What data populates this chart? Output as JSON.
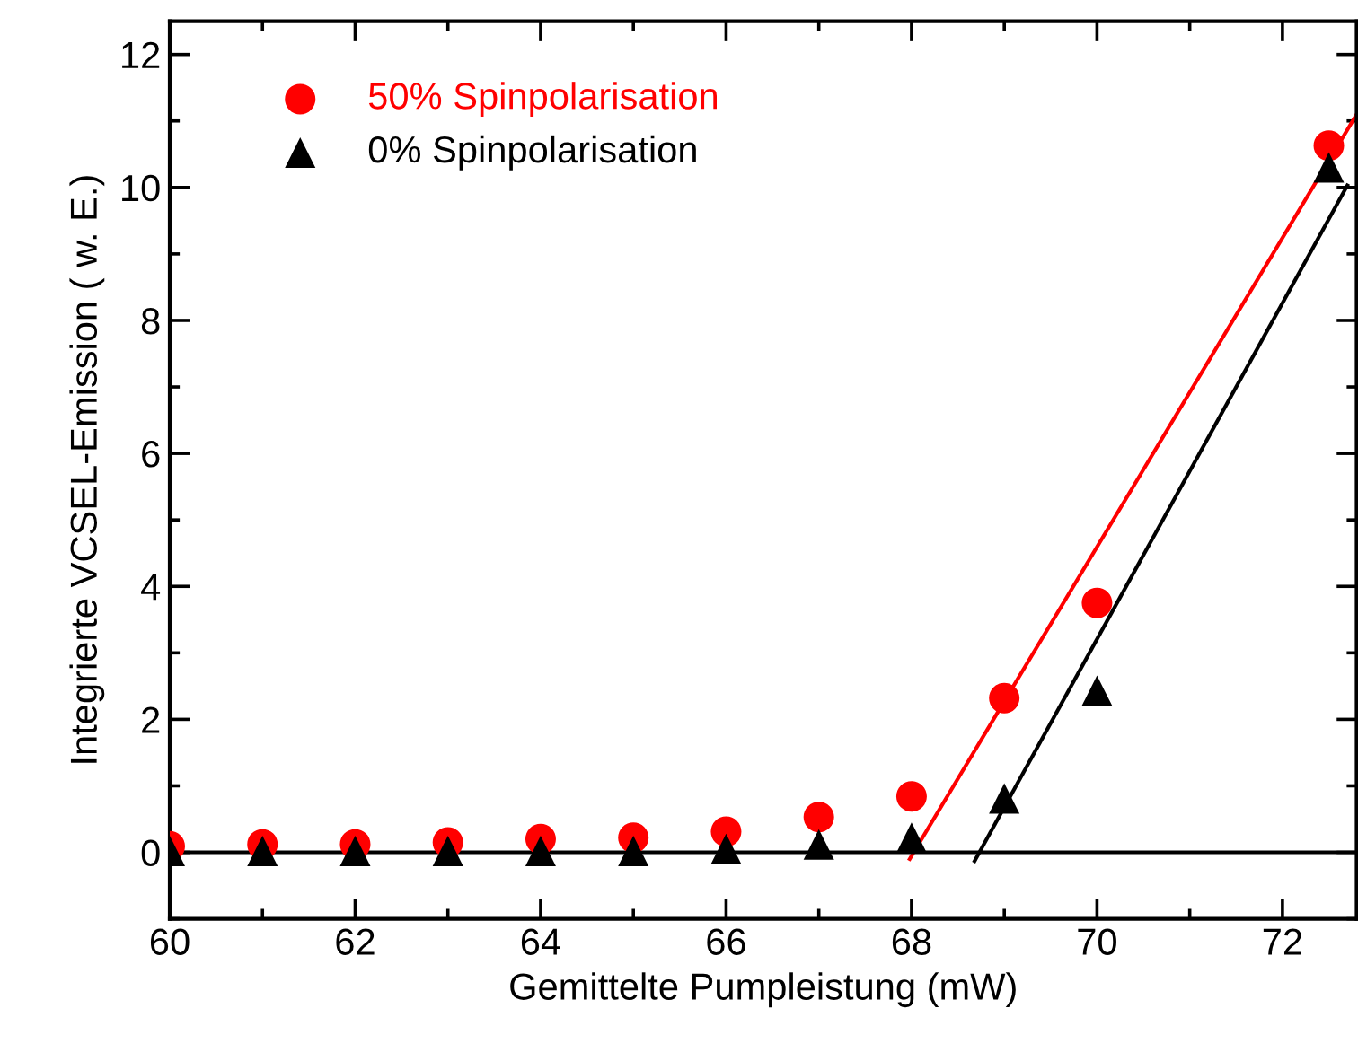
{
  "chart_data": {
    "type": "scatter",
    "xlabel": "Gemittelte Pumpleistung (mW)",
    "ylabel": "Integrierte VCSEL-Emission ( w. E.)",
    "x": [
      60,
      61,
      62,
      63,
      64,
      65,
      66,
      67,
      68,
      69,
      70,
      72.5
    ],
    "series": [
      {
        "name": "50% Spinpolarisation",
        "color": "#ff0000",
        "marker": "circle",
        "values": [
          0.09,
          0.12,
          0.12,
          0.15,
          0.2,
          0.22,
          0.31,
          0.53,
          0.84,
          2.32,
          3.75,
          10.63
        ]
      },
      {
        "name": "0% Spinpolarisation",
        "color": "#000000",
        "marker": "triangle",
        "values": [
          0.02,
          0.02,
          0.02,
          0.02,
          0.02,
          0.02,
          0.05,
          0.12,
          0.22,
          0.81,
          2.43,
          10.3
        ]
      },
      {
        "type": "line",
        "color": "#ff0000",
        "x": [
          67.98,
          72.8
        ],
        "values": [
          -0.1,
          11.1
        ]
      },
      {
        "type": "line",
        "color": "#000000",
        "x": [
          68.68,
          72.7
        ],
        "values": [
          -0.13,
          10.03
        ]
      },
      {
        "type": "line",
        "color": "#000000",
        "x": [
          60,
          72.8
        ],
        "values": [
          0,
          0
        ]
      }
    ],
    "xlim": [
      60,
      72.8
    ],
    "xticks": [
      60,
      62,
      64,
      66,
      68,
      70,
      72
    ],
    "ylim": [
      -1,
      12.5
    ],
    "yticks": [
      0,
      2,
      4,
      6,
      8,
      10,
      12
    ],
    "grid": false,
    "legend": "top left"
  }
}
